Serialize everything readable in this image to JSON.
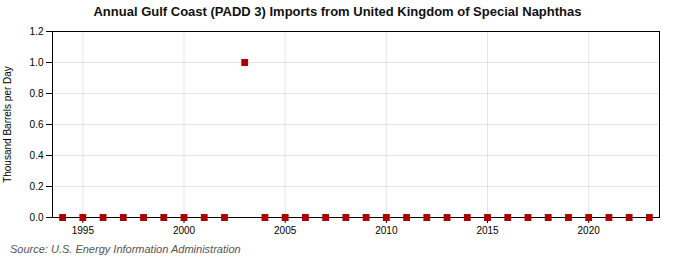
{
  "chart_data": {
    "type": "scatter",
    "title": "Annual Gulf Coast (PADD 3) Imports from United Kingdom of Special Naphthas",
    "ylabel": "Thousand Barrels per Day",
    "annotations": [
      "Source: U.S. Energy Information Administration"
    ],
    "x": [
      1994,
      1995,
      1996,
      1997,
      1998,
      1999,
      2000,
      2001,
      2002,
      2003,
      2004,
      2005,
      2006,
      2007,
      2008,
      2009,
      2010,
      2011,
      2012,
      2013,
      2014,
      2015,
      2016,
      2017,
      2018,
      2019,
      2020,
      2021,
      2022,
      2023
    ],
    "values": [
      0,
      0,
      0,
      0,
      0,
      0,
      0,
      0,
      0,
      1.0,
      0,
      0,
      0,
      0,
      0,
      0,
      0,
      0,
      0,
      0,
      0,
      0,
      0,
      0,
      0,
      0,
      0,
      0,
      0,
      0
    ],
    "color": "#aa0000",
    "marker": "square",
    "xlim": [
      1993.5,
      2023.5
    ],
    "xticks": [
      1995,
      2000,
      2005,
      2010,
      2015,
      2020
    ],
    "ylim": [
      0,
      1.2
    ],
    "yticks": [
      {
        "value": 0.0,
        "label": "0.0"
      },
      0.2,
      0.4,
      0.6,
      0.8,
      {
        "value": 1.0,
        "label": "1.0"
      },
      1.2
    ],
    "grid": true
  }
}
